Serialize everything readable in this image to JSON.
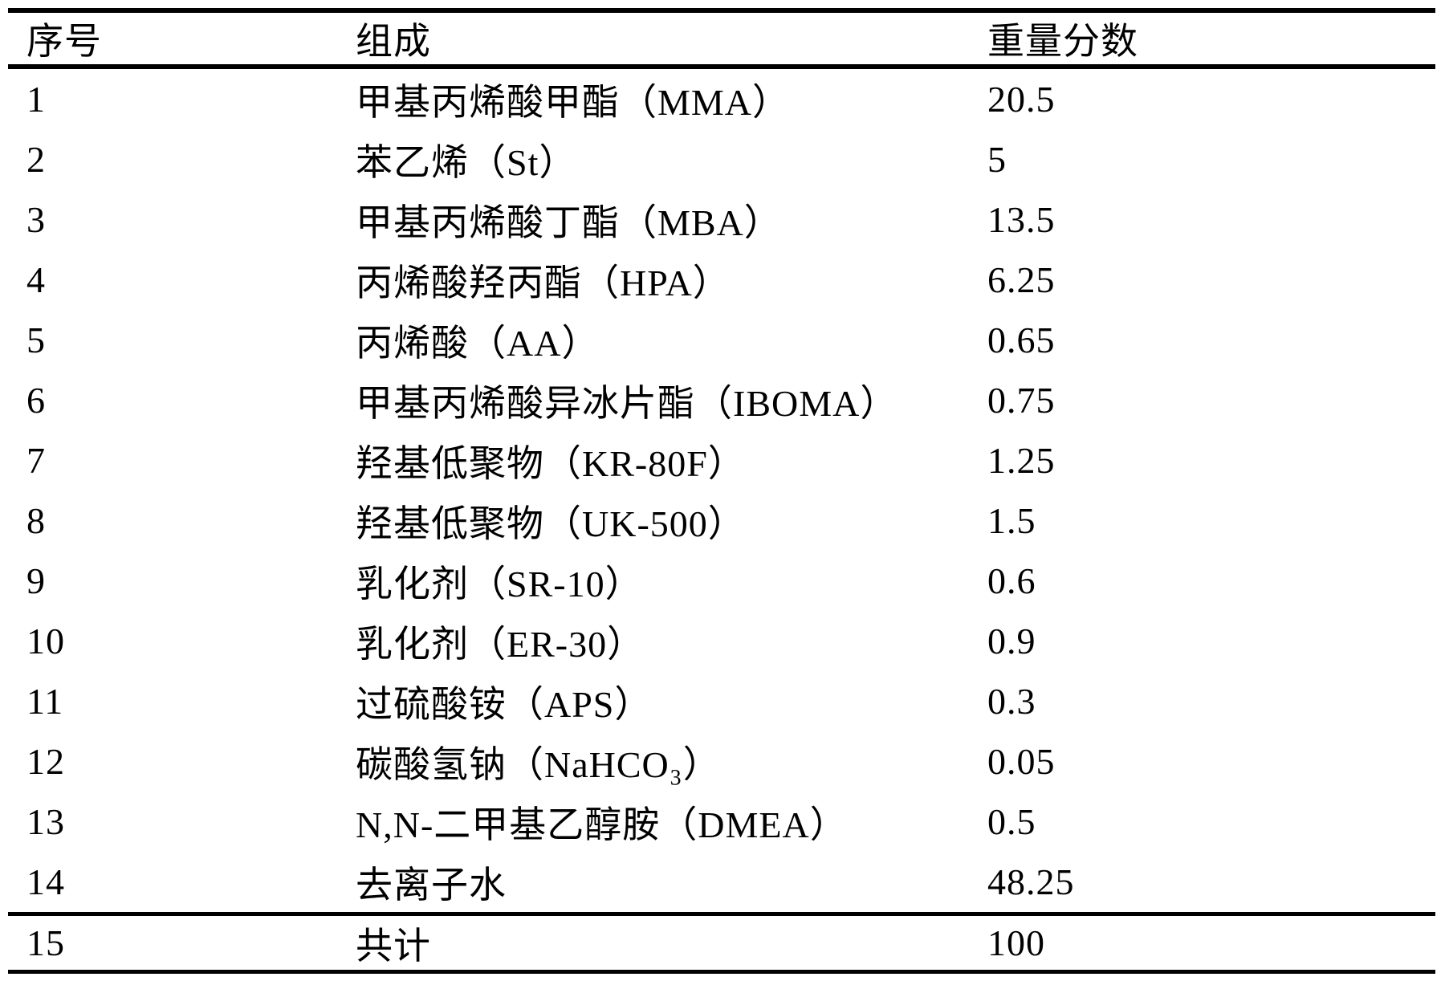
{
  "table": {
    "headers": [
      "序号",
      "组成",
      "重量分数"
    ],
    "rows": [
      {
        "index": "1",
        "composition": "甲基丙烯酸甲酯（MMA）",
        "weight": "20.5"
      },
      {
        "index": "2",
        "composition": "苯乙烯（St）",
        "weight": "5"
      },
      {
        "index": "3",
        "composition": "甲基丙烯酸丁酯（MBA）",
        "weight": "13.5"
      },
      {
        "index": "4",
        "composition": "丙烯酸羟丙酯（HPA）",
        "weight": "6.25"
      },
      {
        "index": "5",
        "composition": "丙烯酸（AA）",
        "weight": "0.65"
      },
      {
        "index": "6",
        "composition": "甲基丙烯酸异冰片酯（IBOMA）",
        "weight": "0.75"
      },
      {
        "index": "7",
        "composition": "羟基低聚物（KR-80F）",
        "weight": "1.25"
      },
      {
        "index": "8",
        "composition": "羟基低聚物（UK-500）",
        "weight": "1.5"
      },
      {
        "index": "9",
        "composition": "乳化剂（SR-10）",
        "weight": "0.6"
      },
      {
        "index": "10",
        "composition": "乳化剂（ER-30）",
        "weight": "0.9"
      },
      {
        "index": "11",
        "composition": "过硫酸铵（APS）",
        "weight": "0.3"
      },
      {
        "index": "12",
        "composition": "碳酸氢钠（NaHCO₃）",
        "weight": "0.05"
      },
      {
        "index": "13",
        "composition": "N,N-二甲基乙醇胺（DMEA）",
        "weight": "0.5"
      },
      {
        "index": "14",
        "composition": "去离子水",
        "weight": "48.25"
      },
      {
        "index": "15",
        "composition": "共计",
        "weight": "100"
      }
    ]
  }
}
